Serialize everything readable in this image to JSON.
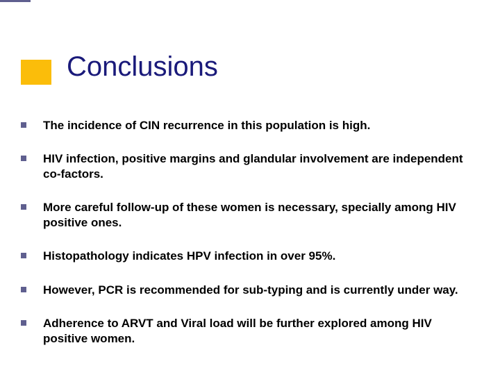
{
  "title": "Conclusions",
  "title_color": "#1a1a7a",
  "title_fontsize": 40,
  "accent_color": "#fbbd0a",
  "accent_line_color": "#5f5f8f",
  "bullet_marker_color": "#5f5f8f",
  "bullet_text_color": "#000000",
  "bullet_fontsize": 17,
  "background_color": "#ffffff",
  "bullets": [
    "The incidence of CIN recurrence in this population is high.",
    "HIV infection, positive margins and glandular involvement are independent co-factors.",
    "More careful follow-up of these women is necessary, specially among HIV positive ones.",
    "Histopathology indicates HPV infection in over 95%.",
    "However, PCR is recommended for sub-typing and is currently under way.",
    "Adherence to ARVT and Viral load will be further explored among HIV positive women."
  ]
}
